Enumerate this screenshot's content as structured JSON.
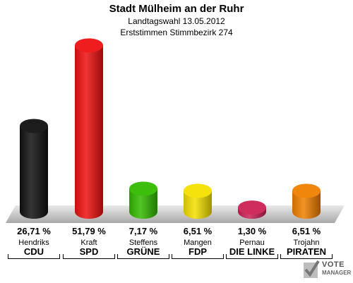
{
  "header": {
    "title": "Stadt Mülheim an der Ruhr",
    "subtitle1": "Landtagswahl 13.05.2012",
    "subtitle2": "Erststimmen Stimmbezirk 274"
  },
  "chart_data": {
    "type": "bar",
    "title": "Stadt Mülheim an der Ruhr",
    "xlabel": "",
    "ylabel": "",
    "ylim": [
      0,
      55
    ],
    "grid": false,
    "categories": [
      "CDU",
      "SPD",
      "GRÜNE",
      "FDP",
      "DIE LINKE",
      "PIRATEN"
    ],
    "candidates": [
      "Hendriks",
      "Kraft",
      "Steffens",
      "Mangen",
      "Pernau",
      "Trojahn"
    ],
    "values": [
      26.71,
      51.79,
      7.17,
      6.51,
      1.3,
      6.51
    ],
    "labels": [
      "26,71 %",
      "51,79 %",
      "7,17 %",
      "6,51 %",
      "1,30 %",
      "6,51 %"
    ],
    "colors": [
      "#111111",
      "#ee1111",
      "#33bb00",
      "#f4e000",
      "#cc2255",
      "#f08000"
    ]
  },
  "logo": {
    "line1": "VOTE",
    "line2": "MANAGER",
    "icon": "checkmark-ballot-icon"
  }
}
